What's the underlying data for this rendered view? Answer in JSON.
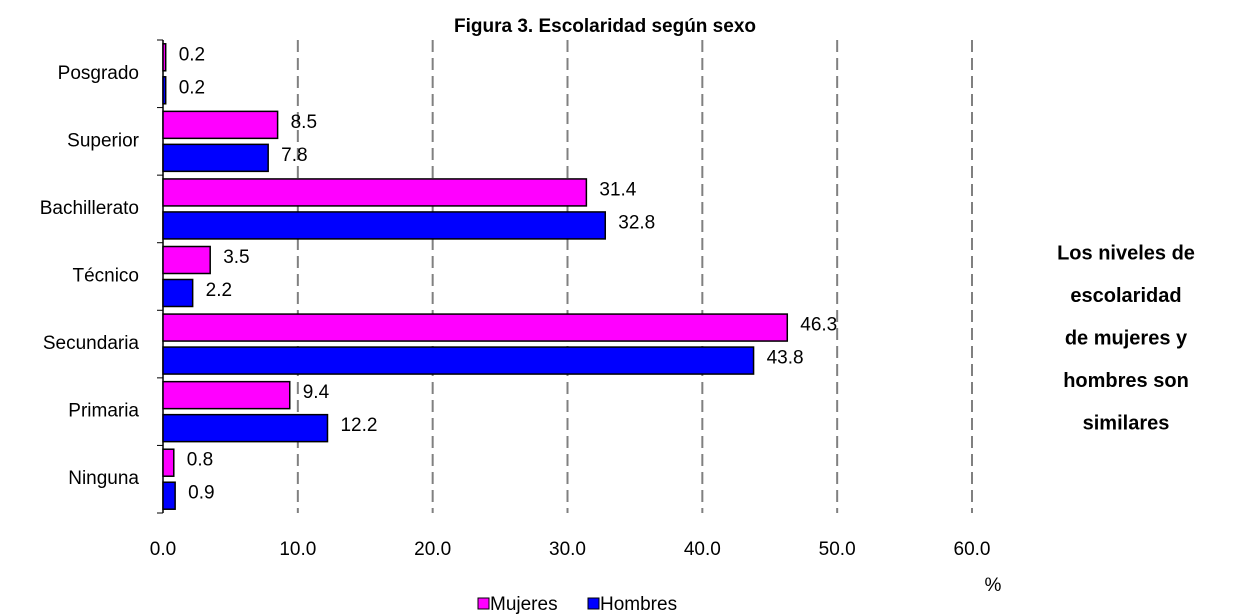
{
  "chart_data": {
    "type": "barh",
    "title": "Figura 3. Escolaridad según sexo",
    "categories": [
      "Posgrado",
      "Superior",
      "Bachillerato",
      "Técnico",
      "Secundaria",
      "Primaria",
      "Ninguna"
    ],
    "series": [
      {
        "name": "Mujeres",
        "color": "#ff00ff",
        "values": [
          0.2,
          8.5,
          31.4,
          3.5,
          46.3,
          9.4,
          0.8
        ]
      },
      {
        "name": "Hombres",
        "color": "#0000ff",
        "values": [
          0.2,
          7.8,
          32.8,
          2.2,
          43.8,
          12.2,
          0.9
        ]
      }
    ],
    "xlim": [
      0,
      60
    ],
    "xticks": [
      {
        "value": 0,
        "label": "0.0"
      },
      {
        "value": 10,
        "label": "10.0"
      },
      {
        "value": 20,
        "label": "20.0"
      },
      {
        "value": 30,
        "label": "30.0"
      },
      {
        "value": 40,
        "label": "40.0"
      },
      {
        "value": 50,
        "label": "50.0"
      },
      {
        "value": 60,
        "label": "60.0"
      }
    ],
    "x_label": "%",
    "grid": true,
    "legend": "bottom",
    "annotation": [
      "Los niveles de",
      "escolaridad",
      "de mujeres y",
      "hombres son",
      "similares"
    ]
  }
}
